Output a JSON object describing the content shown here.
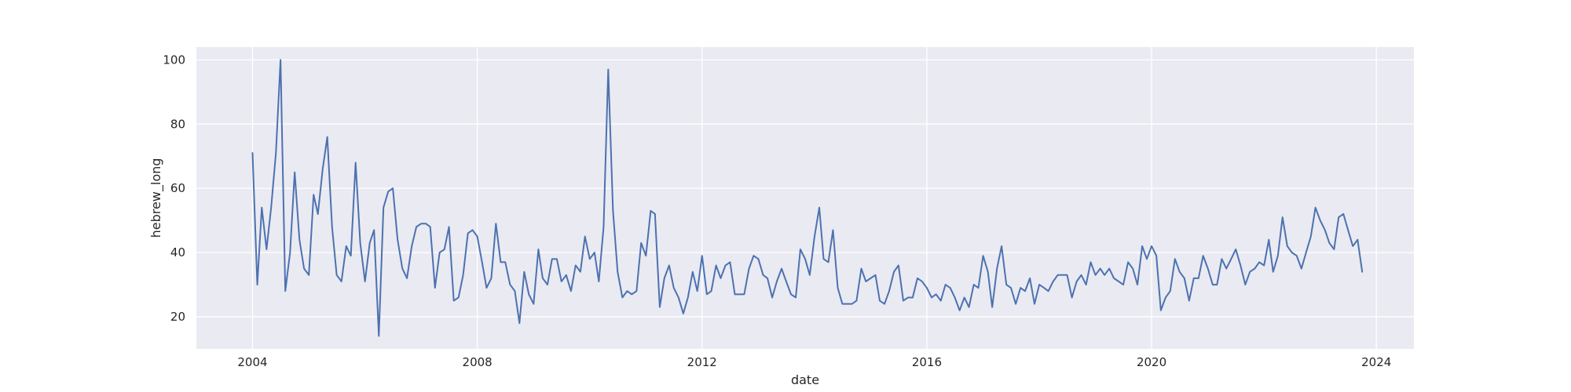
{
  "chart_data": {
    "type": "line",
    "xlabel": "date",
    "ylabel": "hebrew_long",
    "xlim": [
      "2003-01-01",
      "2024-09-01"
    ],
    "ylim": [
      10,
      104
    ],
    "x_ticks": [
      {
        "date": "2004-01-01",
        "label": "2004"
      },
      {
        "date": "2008-01-01",
        "label": "2008"
      },
      {
        "date": "2012-01-01",
        "label": "2012"
      },
      {
        "date": "2016-01-01",
        "label": "2016"
      },
      {
        "date": "2020-01-01",
        "label": "2020"
      },
      {
        "date": "2024-01-01",
        "label": "2024"
      }
    ],
    "y_ticks": [
      20,
      40,
      60,
      80,
      100
    ],
    "grid": true,
    "series": [
      {
        "x_start": "2004-01",
        "x_step": "1 month",
        "values": [
          71,
          30,
          54,
          41,
          54,
          71,
          100,
          28,
          40,
          65,
          44,
          35,
          33,
          58,
          52,
          66,
          76,
          48,
          33,
          31,
          42,
          39,
          68,
          43,
          31,
          43,
          47,
          14,
          54,
          59,
          60,
          44,
          35,
          32,
          42,
          48,
          49,
          49,
          48,
          29,
          40,
          41,
          48,
          25,
          26,
          33,
          46,
          47,
          45,
          37,
          29,
          32,
          49,
          37,
          37,
          30,
          28,
          18,
          34,
          27,
          24,
          41,
          32,
          30,
          38,
          38,
          31,
          33,
          28,
          36,
          34,
          45,
          38,
          40,
          31,
          48,
          97,
          53,
          34,
          26,
          28,
          27,
          28,
          43,
          39,
          53,
          52,
          23,
          32,
          36,
          29,
          26,
          21,
          26,
          34,
          28,
          39,
          27,
          28,
          36,
          32,
          36,
          37,
          27,
          27,
          27,
          35,
          39,
          38,
          33,
          32,
          26,
          31,
          35,
          31,
          27,
          26,
          41,
          38,
          33,
          45,
          54,
          38,
          37,
          47,
          29,
          24,
          24,
          24,
          25,
          35,
          31,
          32,
          33,
          25,
          24,
          28,
          34,
          36,
          25,
          26,
          26,
          32,
          31,
          29,
          26,
          27,
          25,
          30,
          29,
          26,
          22,
          26,
          23,
          30,
          29,
          39,
          34,
          23,
          35,
          42,
          30,
          29,
          24,
          29,
          28,
          32,
          24,
          30,
          29,
          28,
          31,
          33,
          33,
          33,
          26,
          31,
          33,
          30,
          37,
          33,
          35,
          33,
          35,
          32,
          31,
          30,
          37,
          35,
          30,
          42,
          38,
          42,
          39,
          22,
          26,
          28,
          38,
          34,
          32,
          25,
          32,
          32,
          39,
          35,
          30,
          30,
          38,
          35,
          38,
          41,
          36,
          30,
          34,
          35,
          37,
          36,
          44,
          34,
          39,
          51,
          42,
          40,
          39,
          35,
          40,
          45,
          54,
          50,
          47,
          43,
          41,
          51,
          52,
          47,
          42,
          44,
          34
        ]
      }
    ],
    "line_color": "#4c72b0",
    "background_color": "#eaeaf2",
    "grid_color": "#ffffff"
  }
}
